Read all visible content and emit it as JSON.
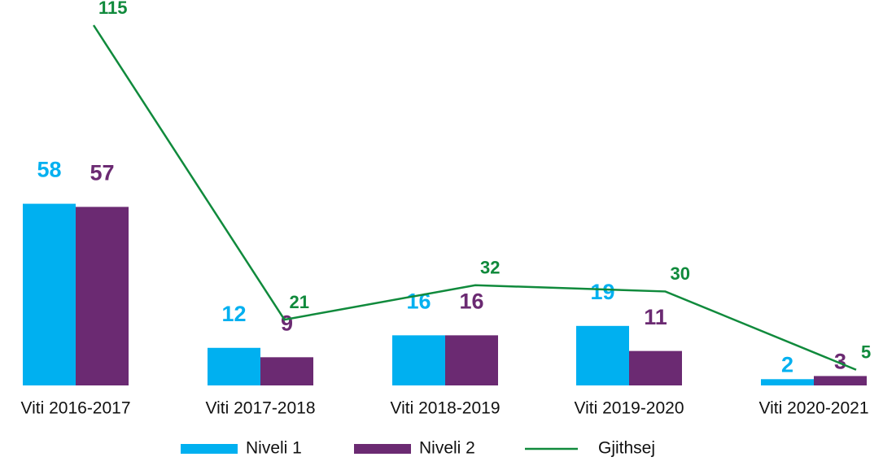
{
  "chart_data": {
    "type": "bar_line",
    "categories": [
      "Viti 2016-2017",
      "Viti 2017-2018",
      "Viti 2018-2019",
      "Viti 2019-2020",
      "Viti 2020-2021"
    ],
    "series": [
      {
        "name": "Niveli 1",
        "color": "#00b0f0",
        "type": "bar",
        "values": [
          58,
          12,
          16,
          19,
          2
        ]
      },
      {
        "name": "Niveli 2",
        "color": "#6b2a72",
        "type": "bar",
        "values": [
          57,
          9,
          16,
          11,
          3
        ]
      },
      {
        "name": "Gjithsej",
        "color": "#108a3c",
        "type": "line",
        "values": [
          115,
          21,
          32,
          30,
          5
        ]
      }
    ],
    "legend": "bottom"
  }
}
